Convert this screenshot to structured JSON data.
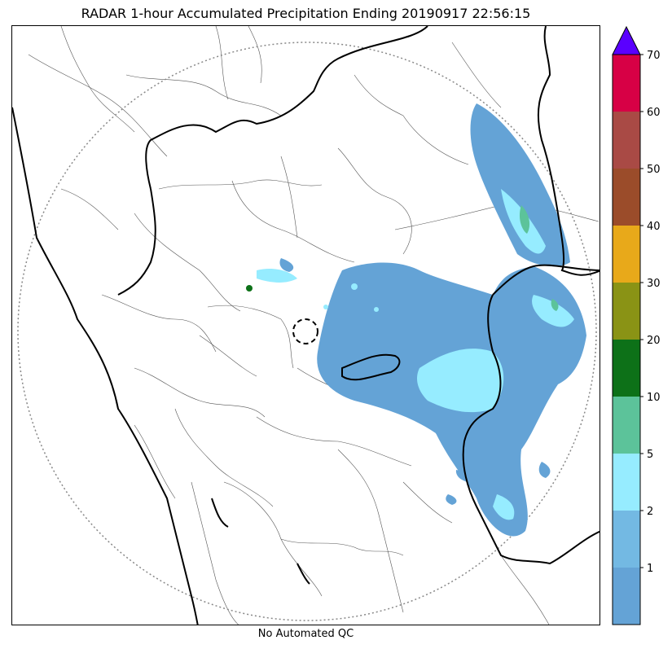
{
  "title": "RADAR 1-hour Accumulated Precipitation Ending 20190917 22:56:15",
  "caption": "No Automated QC",
  "colorbar": {
    "bins": [
      {
        "color": "#64a3d6",
        "label": ""
      },
      {
        "color": "#73b9e3",
        "label": "1"
      },
      {
        "color": "#96ecff",
        "label": "2"
      },
      {
        "color": "#5cc39a",
        "label": "5"
      },
      {
        "color": "#0d7118",
        "label": "10"
      },
      {
        "color": "#8a9315",
        "label": "20"
      },
      {
        "color": "#e8a91a",
        "label": "30"
      },
      {
        "color": "#9b4c2a",
        "label": "40"
      },
      {
        "color": "#a94a45",
        "label": "50"
      },
      {
        "color": "#d70045",
        "label": "60"
      }
    ],
    "top_label": "70",
    "extend_color": "#5a00ff"
  },
  "colors": {
    "precip_light": "#64a3d6",
    "precip_mid": "#96ecff",
    "precip_green": "#5cc39a",
    "precip_dark_green": "#0d7118",
    "range_ring": "#888888",
    "border_heavy": "#000000",
    "border_light": "#555555"
  }
}
